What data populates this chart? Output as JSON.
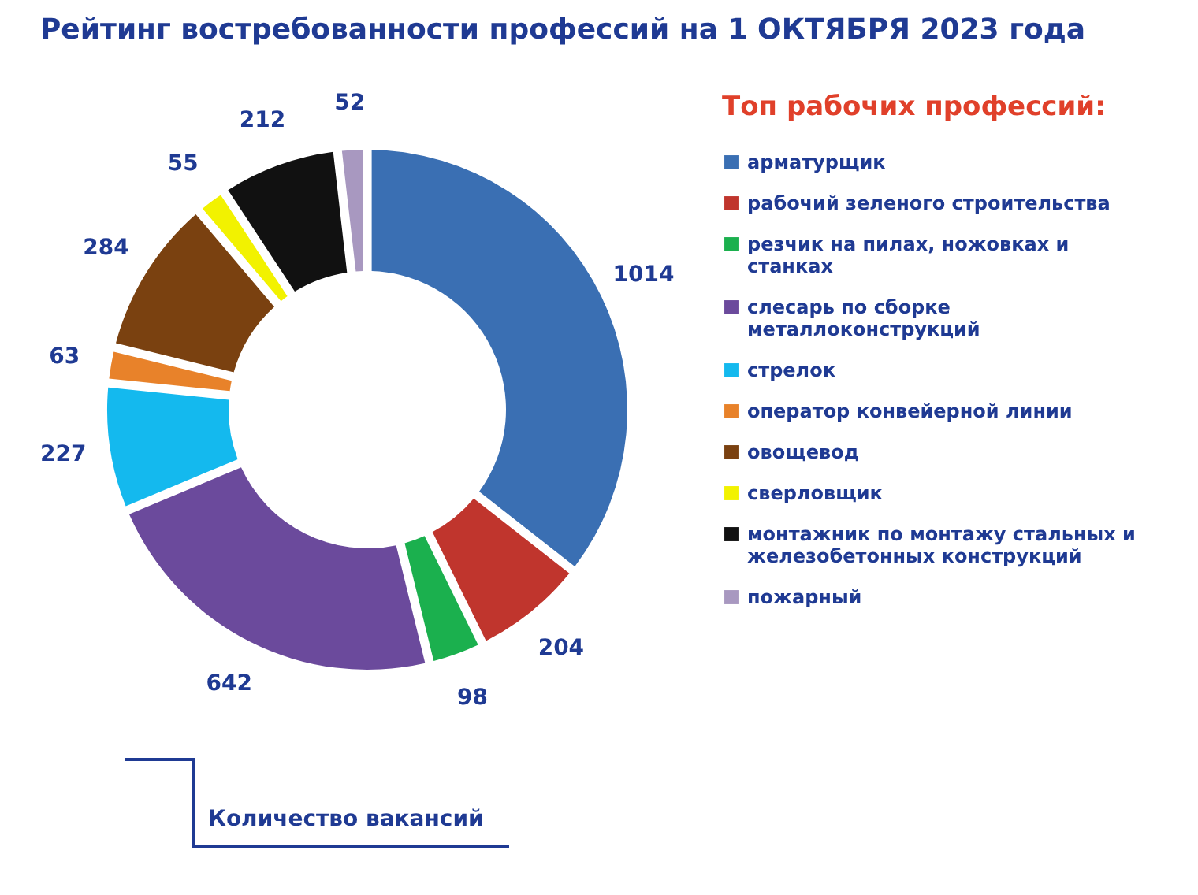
{
  "chart_data": {
    "type": "donut",
    "title": "Рейтинг востребованности профессий на 1 ОКТЯБРЯ 2023 года",
    "legend_title": "Топ рабочих профессий:",
    "categories": [
      "арматурщик",
      "рабочий зеленого строительства",
      "резчик на пилах, ножовках и станках",
      "слесарь по сборке металлоконструкций",
      "стрелок",
      "оператор конвейерной линии",
      "овощевод",
      "сверловщик",
      "монтажник по монтажу стальных и железобетонных конструкций",
      "пожарный"
    ],
    "values": [
      1014,
      204,
      98,
      642,
      227,
      63,
      284,
      55,
      212,
      52
    ],
    "colors": [
      "#3a6fb3",
      "#c0352d",
      "#1bb04e",
      "#6b4a9c",
      "#14b9ee",
      "#e8822a",
      "#7a4110",
      "#f2f200",
      "#111111",
      "#a898c0"
    ],
    "data_labels": true,
    "legend": "right",
    "annotations": [
      "Количество вакансий"
    ]
  }
}
